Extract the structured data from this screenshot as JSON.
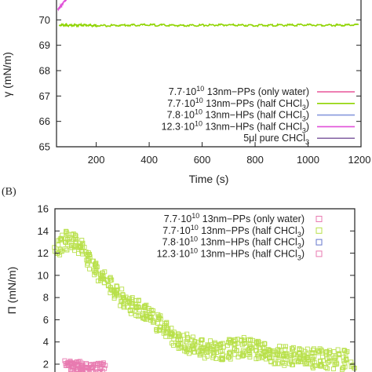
{
  "chart_data": [
    {
      "type": "line",
      "xlabel": "Time (s)",
      "ylabel": "γ (mN/m)",
      "xlim": [
        50,
        1200
      ],
      "ylim": [
        65,
        71
      ],
      "xticks": [
        200,
        400,
        600,
        800,
        1000,
        1200
      ],
      "yticks": [
        65,
        66,
        67,
        68,
        69,
        70
      ],
      "grid": false,
      "legend_position": "bottom-right",
      "series": [
        {
          "name": "7.7·10^10 13nm–PPs (only water)",
          "color": "#e8559a",
          "x": [],
          "y": []
        },
        {
          "name": "7.7·10^10 13nm–PPs (half CHCl3)",
          "color": "#8fd400",
          "x": [
            60,
            100,
            150,
            200,
            300,
            400,
            500,
            600,
            700,
            800,
            900,
            1000,
            1100,
            1190
          ],
          "y": [
            69.8,
            69.78,
            69.8,
            69.77,
            69.79,
            69.8,
            69.78,
            69.79,
            69.8,
            69.78,
            69.79,
            69.8,
            69.79,
            69.8
          ]
        },
        {
          "name": "7.8·10^10 13nm–HPs (half CHCl3)",
          "color": "#8899dd",
          "x": [],
          "y": []
        },
        {
          "name": "12.3·10^10 13nm–HPs (half CHCl3)",
          "color": "#e050d8",
          "x": [
            55,
            70,
            85,
            100,
            110
          ],
          "y": [
            70.4,
            70.6,
            70.8,
            70.95,
            71.0
          ]
        },
        {
          "name": "5μl pure CHCl3",
          "color": "#8a6aa8",
          "x": [],
          "y": []
        }
      ]
    },
    {
      "type": "scatter",
      "xlabel": "",
      "ylabel": "Π (mN/m)",
      "xlim": [
        50,
        1200
      ],
      "ylim": [
        2,
        16
      ],
      "yticks": [
        2,
        4,
        6,
        8,
        10,
        12,
        14,
        16
      ],
      "grid": false,
      "legend_position": "top-right",
      "series": [
        {
          "name": "7.7·10^10 13nm–PPs (only water)",
          "color": "#e87ab0",
          "x": [
            100,
            130,
            160,
            190,
            220,
            250
          ],
          "y": [
            2.1,
            2.05,
            1.95,
            1.9,
            1.85,
            1.9
          ]
        },
        {
          "name": "7.7·10^10 13nm–PPs (half CHCl3)",
          "color": "#b8e04a",
          "x": [
            60,
            100,
            140,
            180,
            220,
            260,
            300,
            340,
            380,
            420,
            460,
            500,
            540,
            580,
            620,
            660,
            700,
            740,
            780,
            820,
            860,
            900,
            940,
            980,
            1020,
            1060,
            1100,
            1150,
            1200
          ],
          "y": [
            12.8,
            13.6,
            13.4,
            12.2,
            10.8,
            9.6,
            8.7,
            8.0,
            7.4,
            6.8,
            6.0,
            5.2,
            4.5,
            4.2,
            3.8,
            3.7,
            3.6,
            3.9,
            4.0,
            3.8,
            3.5,
            3.3,
            3.2,
            3.1,
            3.0,
            3.0,
            2.9,
            2.85,
            2.8
          ]
        },
        {
          "name": "7.8·10^10 13nm–HPs (half CHCl3)",
          "color": "#6677cc",
          "x": [],
          "y": []
        },
        {
          "name": "12.3·10^10 13nm–HPs (half CHCl3)",
          "color": "#e87ab0",
          "x": [],
          "y": []
        }
      ]
    }
  ],
  "panel_b_label": "(B)",
  "xtick_labels": [
    "200",
    "400",
    "600",
    "800",
    "1000",
    "1200"
  ],
  "xlabel_top": "Time (s)",
  "ylabel_top": "γ (mN/m)",
  "ytick_labels_top": [
    "65",
    "66",
    "67",
    "68",
    "69",
    "70"
  ],
  "ylabel_bottom": "Π (mN/m)",
  "ytick_labels_bottom": [
    "2",
    "4",
    "6",
    "8",
    "10",
    "12",
    "14",
    "16"
  ],
  "legend_top": [
    {
      "pre": "7.7·10",
      "sup": "10",
      "post": " 13nm−PPs (only water)",
      "sub": "",
      "tail": ""
    },
    {
      "pre": "7.7·10",
      "sup": "10",
      "post": " 13nm−PPs (half CHCl",
      "sub": "3",
      "tail": ")"
    },
    {
      "pre": "7.8·10",
      "sup": "10",
      "post": " 13nm−HPs (half CHCl",
      "sub": "3",
      "tail": ")"
    },
    {
      "pre": "12.3·10",
      "sup": "10",
      "post": " 13nm−HPs (half CHCl",
      "sub": "3",
      "tail": ")"
    },
    {
      "pre": "5μl pure CHCl",
      "sup": "",
      "post": "",
      "sub": "3",
      "tail": ""
    }
  ],
  "legend_bottom": [
    {
      "pre": "7.7·10",
      "sup": "10",
      "post": " 13nm−PPs (only water)",
      "sub": "",
      "tail": ""
    },
    {
      "pre": "7.7·10",
      "sup": "10",
      "post": " 13nm−PPs (half CHCl",
      "sub": "3",
      "tail": ")"
    },
    {
      "pre": "7.8·10",
      "sup": "10",
      "post": " 13nm−HPs (half CHCl",
      "sub": "3",
      "tail": ")"
    },
    {
      "pre": "12.3·10",
      "sup": "10",
      "post": " 13nm−HPs (half CHCl",
      "sub": "3",
      "tail": ")"
    }
  ]
}
